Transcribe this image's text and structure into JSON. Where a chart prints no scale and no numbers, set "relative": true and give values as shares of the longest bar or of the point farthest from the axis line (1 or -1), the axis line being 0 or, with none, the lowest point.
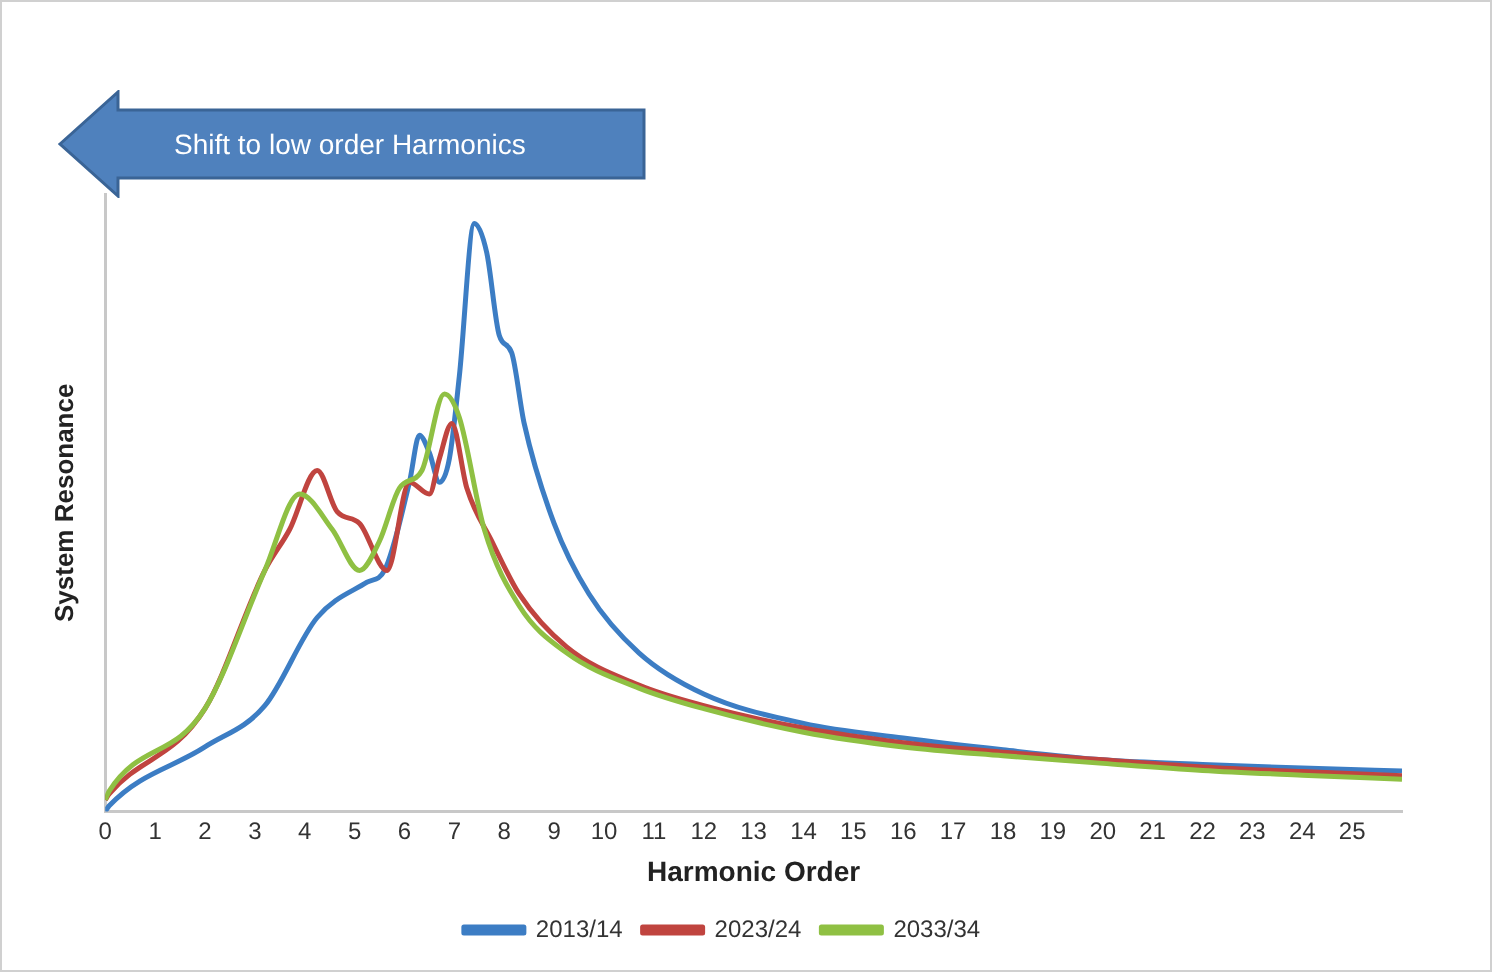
{
  "chart_data": {
    "type": "line",
    "relative": true,
    "xlabel": "Harmonic Order",
    "ylabel": "System Resonance",
    "xlim": [
      0,
      26
    ],
    "xticks": [
      0,
      1,
      2,
      3,
      4,
      5,
      6,
      7,
      8,
      9,
      10,
      11,
      12,
      13,
      14,
      15,
      16,
      17,
      18,
      19,
      20,
      21,
      22,
      23,
      24,
      25
    ],
    "grid": false,
    "legend": "bottom",
    "marker": "none",
    "line_style": "solid",
    "annotations": [
      "Shift to low order Harmonics"
    ],
    "series": [
      {
        "name": "2013/14",
        "color": "#3c7dc4",
        "x": [
          0,
          0.08,
          2,
          3.2,
          4.25,
          5.25,
          5.6,
          6.1,
          6.3,
          6.5,
          6.7,
          6.9,
          7.1,
          7.4,
          7.65,
          7.9,
          8.15,
          8.4,
          9,
          9.7,
          10.7,
          12,
          14,
          16,
          18,
          20,
          22,
          24,
          26
        ],
        "values": [
          0,
          0.01,
          0.11,
          0.18,
          0.33,
          0.39,
          0.41,
          0.56,
          0.64,
          0.61,
          0.56,
          0.6,
          0.74,
          1,
          0.95,
          0.81,
          0.78,
          0.66,
          0.49,
          0.37,
          0.27,
          0.2,
          0.15,
          0.125,
          0.105,
          0.088,
          0.08,
          0.074,
          0.069
        ]
      },
      {
        "name": "2023/24",
        "color": "#c0443f",
        "x": [
          0,
          0.08,
          2,
          3.2,
          3.7,
          4.25,
          4.65,
          5.1,
          5.65,
          6.1,
          6.5,
          6.7,
          6.95,
          7.25,
          7.75,
          8.3,
          9.25,
          10.7,
          12,
          14,
          16,
          18,
          20,
          22,
          24,
          26
        ],
        "values": [
          0.02,
          0.03,
          0.175,
          0.41,
          0.48,
          0.58,
          0.51,
          0.49,
          0.41,
          0.56,
          0.54,
          0.6,
          0.66,
          0.55,
          0.46,
          0.37,
          0.28,
          0.215,
          0.18,
          0.142,
          0.117,
          0.101,
          0.088,
          0.076,
          0.068,
          0.061
        ]
      },
      {
        "name": "2033/34",
        "color": "#8fc043",
        "x": [
          0,
          0.08,
          2,
          3.2,
          3.9,
          4.55,
          5.1,
          5.5,
          5.9,
          6.35,
          6.8,
          7.1,
          7.6,
          8.3,
          9.25,
          10.7,
          12,
          14,
          16,
          18,
          20,
          22,
          24,
          26
        ],
        "values": [
          0.02,
          0.035,
          0.175,
          0.41,
          0.54,
          0.48,
          0.41,
          0.46,
          0.55,
          0.58,
          0.71,
          0.67,
          0.48,
          0.35,
          0.27,
          0.21,
          0.175,
          0.135,
          0.11,
          0.095,
          0.082,
          0.07,
          0.062,
          0.055
        ]
      }
    ]
  }
}
